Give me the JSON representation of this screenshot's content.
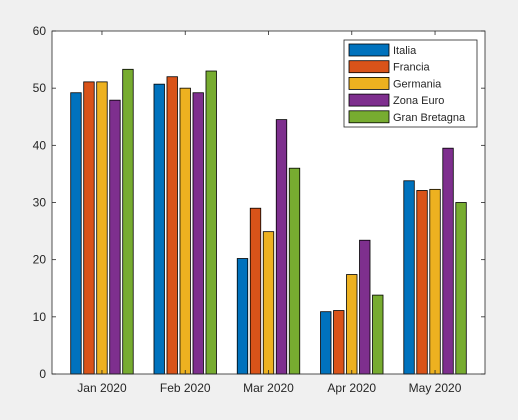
{
  "chart_data": {
    "type": "bar",
    "title": "",
    "xlabel": "",
    "ylabel": "",
    "categories": [
      "Jan 2020",
      "Feb 2020",
      "Mar 2020",
      "Apr 2020",
      "May 2020"
    ],
    "ylim": [
      0,
      60
    ],
    "yticks": [
      0,
      10,
      20,
      30,
      40,
      50,
      60
    ],
    "grid": false,
    "legend_position": "top-right",
    "series": [
      {
        "name": "Italia",
        "color": "#0072bd",
        "values": [
          49.2,
          50.7,
          20.2,
          10.9,
          33.8
        ]
      },
      {
        "name": "Francia",
        "color": "#d95319",
        "values": [
          51.1,
          52.0,
          29.0,
          11.1,
          32.1
        ]
      },
      {
        "name": "Germania",
        "color": "#edb120",
        "values": [
          51.1,
          50.0,
          24.9,
          17.4,
          32.3
        ]
      },
      {
        "name": "Zona Euro",
        "color": "#7e2f8e",
        "values": [
          47.9,
          49.2,
          44.5,
          23.4,
          39.5
        ]
      },
      {
        "name": "Gran Bretagna",
        "color": "#77ac30",
        "values": [
          53.3,
          53.0,
          36.0,
          13.8,
          30.0
        ]
      }
    ]
  }
}
